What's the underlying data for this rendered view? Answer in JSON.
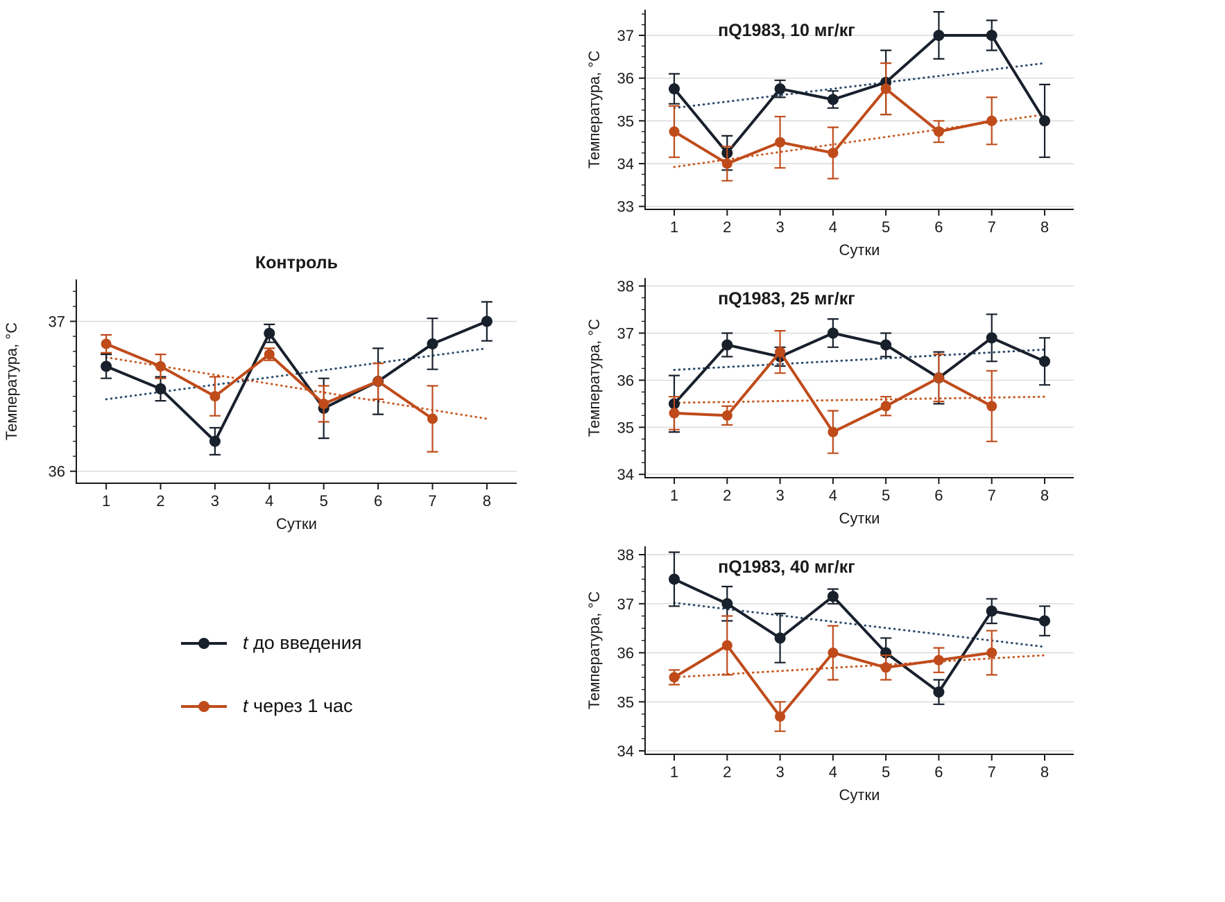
{
  "figure": {
    "colors": {
      "series_before": "#18202c",
      "series_after": "#bf4b1a",
      "trend_before": "#2a4a6b",
      "trend_after": "#c8581f",
      "axis": "#1a1a1a",
      "grid": "#d9d9d9",
      "background": "#ffffff"
    },
    "legend": {
      "items": [
        {
          "key": "before",
          "symbol": "t",
          "label": " до введения"
        },
        {
          "key": "after",
          "symbol": "t",
          "label": " через 1 час"
        }
      ]
    }
  },
  "chart_data": [
    {
      "id": "control",
      "type": "line",
      "title": "Контроль",
      "title_pos": "above",
      "xlabel": "Сутки",
      "ylabel": "Температура, °С",
      "x": [
        1,
        2,
        3,
        4,
        5,
        6,
        7,
        8
      ],
      "xlim": [
        0.45,
        8.55
      ],
      "ylim": [
        35.92,
        37.28
      ],
      "yticks": [
        36,
        37
      ],
      "ytick_minor": 0.1,
      "grid": true,
      "legend_position": "bottom-left-of-figure",
      "series": [
        {
          "name": "t до введения",
          "key": "before",
          "values": [
            36.7,
            36.55,
            36.2,
            36.92,
            36.42,
            36.6,
            36.85,
            37.0
          ],
          "errors": [
            0.08,
            0.08,
            0.09,
            0.06,
            0.2,
            0.22,
            0.17,
            0.13
          ]
        },
        {
          "name": "t через 1 час",
          "key": "after",
          "values": [
            36.85,
            36.7,
            36.5,
            36.78,
            36.45,
            36.6,
            36.35,
            null
          ],
          "errors": [
            0.06,
            0.08,
            0.13,
            0.04,
            0.12,
            0.12,
            0.22,
            null
          ]
        }
      ],
      "trends": [
        {
          "key": "before",
          "x1": 1,
          "y1": 36.48,
          "x2": 8,
          "y2": 36.82
        },
        {
          "key": "after",
          "x1": 1,
          "y1": 36.76,
          "x2": 8,
          "y2": 36.35
        }
      ]
    },
    {
      "id": "dose10",
      "type": "line",
      "title": "пQ1983, 10 мг/кг",
      "title_pos": "inside",
      "xlabel": "Сутки",
      "ylabel": "Температура, °С",
      "x": [
        1,
        2,
        3,
        4,
        5,
        6,
        7,
        8
      ],
      "xlim": [
        0.45,
        8.55
      ],
      "ylim": [
        32.93,
        37.6
      ],
      "yticks": [
        33,
        34,
        35,
        36,
        37
      ],
      "ytick_minor": 0.25,
      "grid": true,
      "series": [
        {
          "name": "t до введения",
          "key": "before",
          "values": [
            35.75,
            34.25,
            35.75,
            35.5,
            35.9,
            37.0,
            37.0,
            35.0
          ],
          "errors": [
            0.35,
            0.4,
            0.2,
            0.2,
            0.75,
            0.55,
            0.35,
            0.85
          ]
        },
        {
          "name": "t через 1 час",
          "key": "after",
          "values": [
            34.75,
            34.0,
            34.5,
            34.25,
            35.75,
            34.75,
            35.0,
            null
          ],
          "errors": [
            0.6,
            0.4,
            0.6,
            0.6,
            0.6,
            0.25,
            0.55,
            null
          ]
        }
      ],
      "trends": [
        {
          "key": "before",
          "x1": 1,
          "y1": 35.3,
          "x2": 8,
          "y2": 36.35
        },
        {
          "key": "after",
          "x1": 1,
          "y1": 33.92,
          "x2": 8,
          "y2": 35.15
        }
      ]
    },
    {
      "id": "dose25",
      "type": "line",
      "title": "пQ1983, 25 мг/кг",
      "title_pos": "inside",
      "xlabel": "Сутки",
      "ylabel": "Температура, °С",
      "x": [
        1,
        2,
        3,
        4,
        5,
        6,
        7,
        8
      ],
      "xlim": [
        0.45,
        8.55
      ],
      "ylim": [
        33.93,
        38.17
      ],
      "yticks": [
        34,
        35,
        36,
        37,
        38
      ],
      "ytick_minor": 0.25,
      "grid": true,
      "series": [
        {
          "name": "t до введения",
          "key": "before",
          "values": [
            35.5,
            36.75,
            36.5,
            37.0,
            36.75,
            36.05,
            36.9,
            36.4
          ],
          "errors": [
            0.6,
            0.25,
            0.2,
            0.3,
            0.25,
            0.55,
            0.5,
            0.5
          ]
        },
        {
          "name": "t через 1 час",
          "key": "after",
          "values": [
            35.3,
            35.25,
            36.6,
            34.9,
            35.45,
            36.05,
            35.45,
            null
          ],
          "errors": [
            0.35,
            0.2,
            0.45,
            0.45,
            0.2,
            0.5,
            0.75,
            null
          ]
        }
      ],
      "trends": [
        {
          "key": "before",
          "x1": 1,
          "y1": 36.22,
          "x2": 8,
          "y2": 36.65
        },
        {
          "key": "after",
          "x1": 1,
          "y1": 35.52,
          "x2": 8,
          "y2": 35.65
        }
      ]
    },
    {
      "id": "dose40",
      "type": "line",
      "title": "пQ1983, 40 мг/кг",
      "title_pos": "inside",
      "xlabel": "Сутки",
      "ylabel": "Температура, °С",
      "x": [
        1,
        2,
        3,
        4,
        5,
        6,
        7,
        8
      ],
      "xlim": [
        0.45,
        8.55
      ],
      "ylim": [
        33.93,
        38.17
      ],
      "yticks": [
        34,
        35,
        36,
        37,
        38
      ],
      "ytick_minor": 0.25,
      "grid": true,
      "series": [
        {
          "name": "t до введения",
          "key": "before",
          "values": [
            37.5,
            37.0,
            36.3,
            37.15,
            36.0,
            35.2,
            36.85,
            36.65
          ],
          "errors": [
            0.55,
            0.35,
            0.5,
            0.15,
            0.3,
            0.25,
            0.25,
            0.3
          ]
        },
        {
          "name": "t через 1 час",
          "key": "after",
          "values": [
            35.5,
            36.15,
            34.7,
            36.0,
            35.7,
            35.85,
            36.0,
            null
          ],
          "errors": [
            0.15,
            0.6,
            0.3,
            0.55,
            0.25,
            0.25,
            0.45,
            null
          ]
        }
      ],
      "trends": [
        {
          "key": "before",
          "x1": 1,
          "y1": 37.02,
          "x2": 8,
          "y2": 36.12
        },
        {
          "key": "after",
          "x1": 1,
          "y1": 35.5,
          "x2": 8,
          "y2": 35.95
        }
      ]
    }
  ]
}
